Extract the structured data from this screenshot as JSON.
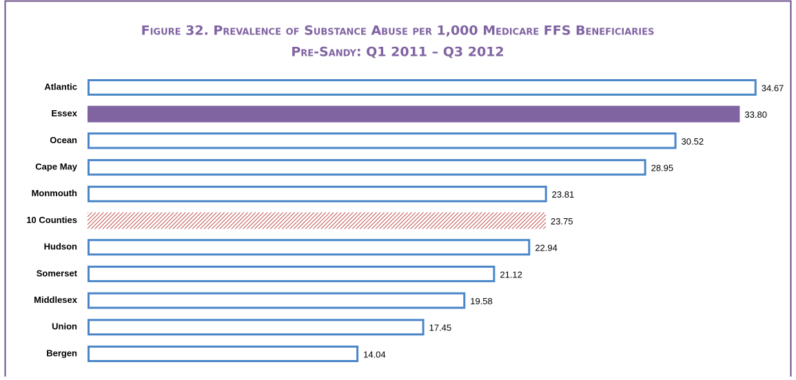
{
  "chart_data": {
    "type": "barh",
    "title": "Figure 32. Prevalence of Substance Abuse per 1,000 Medicare FFS Beneficiaries",
    "subtitle": "Pre-Sandy: Q1 2011 – Q3 2012",
    "categories": [
      "Atlantic",
      "Essex",
      "Ocean",
      "Cape May",
      "Monmouth",
      "10 Counties",
      "Hudson",
      "Somerset",
      "Middlesex",
      "Union",
      "Bergen"
    ],
    "values": [
      34.67,
      33.8,
      30.52,
      28.95,
      23.81,
      23.75,
      22.94,
      21.12,
      19.58,
      17.45,
      14.04
    ],
    "value_labels": [
      "34.67",
      "33.80",
      "30.52",
      "28.95",
      "23.81",
      "23.75",
      "22.94",
      "21.12",
      "19.58",
      "17.45",
      "14.04"
    ],
    "fills": [
      "outline",
      "#8064a2",
      "outline",
      "outline",
      "outline",
      "hatch",
      "outline",
      "outline",
      "outline",
      "outline",
      "outline"
    ],
    "outline_color": "#4a86c8",
    "hatch_color": "#c0504d"
  }
}
